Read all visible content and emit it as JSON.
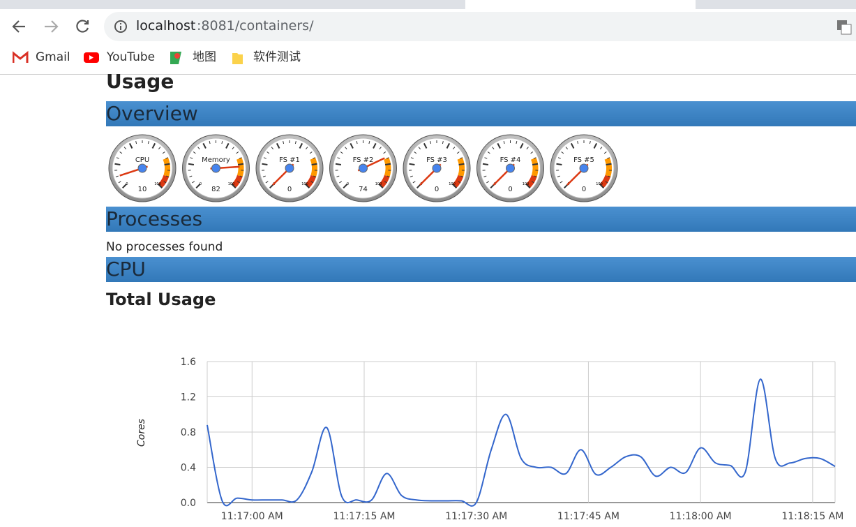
{
  "browser": {
    "url_host": "localhost",
    "url_path": ":8081/containers/",
    "bookmarks": [
      "Gmail",
      "YouTube",
      "地图",
      "软件测试"
    ]
  },
  "page": {
    "heading": "Usage",
    "overview": {
      "title": "Overview",
      "scale": [
        0,
        100
      ],
      "gauges": [
        {
          "label": "CPU",
          "value": 10
        },
        {
          "label": "Memory",
          "value": 82
        },
        {
          "label": "FS #1",
          "value": 0
        },
        {
          "label": "FS #2",
          "value": 74
        },
        {
          "label": "FS #3",
          "value": 0
        },
        {
          "label": "FS #4",
          "value": 0
        },
        {
          "label": "FS #5",
          "value": 0
        }
      ]
    },
    "processes": {
      "title": "Processes",
      "message": "No processes found"
    },
    "cpu": {
      "title": "CPU"
    }
  },
  "chart_data": {
    "type": "line",
    "title": "Total Usage",
    "y_label": "Cores",
    "color": "#3366cc",
    "grid": true,
    "x": [
      "11:16:54 AM",
      "11:16:56 AM",
      "11:16:58 AM",
      "11:17:00 AM",
      "11:17:02 AM",
      "11:17:04 AM",
      "11:17:06 AM",
      "11:17:08 AM",
      "11:17:10 AM",
      "11:17:12 AM",
      "11:17:14 AM",
      "11:17:16 AM",
      "11:17:18 AM",
      "11:17:20 AM",
      "11:17:22 AM",
      "11:17:24 AM",
      "11:17:26 AM",
      "11:17:28 AM",
      "11:17:30 AM",
      "11:17:32 AM",
      "11:17:34 AM",
      "11:17:36 AM",
      "11:17:38 AM",
      "11:17:40 AM",
      "11:17:42 AM",
      "11:17:44 AM",
      "11:17:46 AM",
      "11:17:48 AM",
      "11:17:50 AM",
      "11:17:52 AM",
      "11:17:54 AM",
      "11:17:56 AM",
      "11:17:58 AM",
      "11:18:00 AM",
      "11:18:02 AM",
      "11:18:04 AM",
      "11:18:06 AM",
      "11:18:08 AM",
      "11:18:10 AM",
      "11:18:12 AM",
      "11:18:14 AM",
      "11:18:16 AM",
      "11:18:18 AM"
    ],
    "values": [
      0.88,
      0.02,
      0.05,
      0.03,
      0.03,
      0.03,
      0.03,
      0.35,
      0.85,
      0.07,
      0.03,
      0.03,
      0.33,
      0.08,
      0.03,
      0.02,
      0.02,
      0.02,
      0.0,
      0.6,
      1.0,
      0.5,
      0.4,
      0.4,
      0.33,
      0.6,
      0.32,
      0.4,
      0.52,
      0.52,
      0.3,
      0.4,
      0.34,
      0.62,
      0.45,
      0.42,
      0.35,
      1.4,
      0.5,
      0.45,
      0.5,
      0.5,
      0.41
    ],
    "xlim": [
      "11:16:54 AM",
      "11:18:18 AM"
    ],
    "xticks": [
      "11:17:00 AM",
      "11:17:15 AM",
      "11:17:30 AM",
      "11:17:45 AM",
      "11:18:00 AM",
      "11:18:15 AM"
    ],
    "ylim": [
      0,
      1.6
    ],
    "yticks": [
      {
        "value": 0,
        "label": "0.0"
      },
      0.4,
      0.8,
      1.2,
      1.6
    ]
  }
}
